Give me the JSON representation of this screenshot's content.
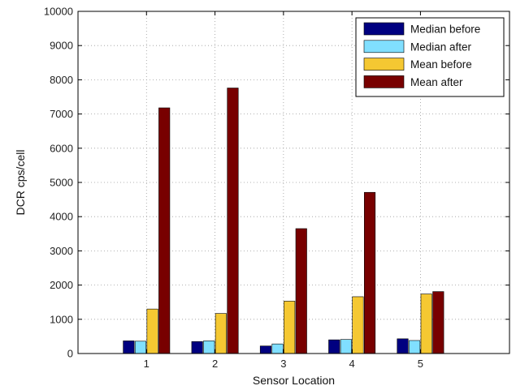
{
  "chart_data": {
    "type": "bar",
    "title": "",
    "xlabel": "Sensor Location",
    "ylabel": "DCR cps/cell",
    "categories": [
      "1",
      "2",
      "3",
      "4",
      "5"
    ],
    "ylim": [
      0,
      10000
    ],
    "yticks": [
      0,
      1000,
      2000,
      3000,
      4000,
      5000,
      6000,
      7000,
      8000,
      9000,
      10000
    ],
    "grid": "dotted",
    "legend_position": "top-right",
    "series": [
      {
        "name": "Median before",
        "color": "#000080",
        "values": [
          370,
          350,
          220,
          400,
          430
        ]
      },
      {
        "name": "Median after",
        "color": "#80dfff",
        "values": [
          360,
          370,
          280,
          410,
          380
        ]
      },
      {
        "name": "Mean before",
        "color": "#f5c832",
        "values": [
          1300,
          1170,
          1530,
          1660,
          1740
        ]
      },
      {
        "name": "Mean after",
        "color": "#780000",
        "values": [
          7180,
          7760,
          3650,
          4710,
          1810
        ]
      }
    ]
  }
}
